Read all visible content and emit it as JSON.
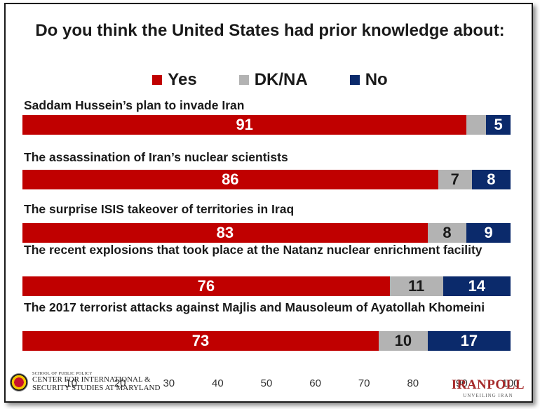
{
  "chart_data": {
    "type": "bar",
    "orientation": "horizontal",
    "stacked": true,
    "title": "Do you think the United States had prior knowledge about:",
    "categories": [
      "Saddam Hussein’s plan to invade Iran",
      "The assassination of Iran’s nuclear scientists",
      "The surprise ISIS takeover of territories in Iraq",
      "The recent explosions that took place at the Natanz nuclear enrichment facility",
      "The 2017 terrorist attacks against Majlis and Mausoleum of Ayatollah Khomeini"
    ],
    "series": [
      {
        "name": "Yes",
        "color": "#c00000",
        "values": [
          91,
          86,
          83,
          76,
          73
        ]
      },
      {
        "name": "DK/NA",
        "color": "#b3b3b3",
        "values": [
          4,
          7,
          8,
          11,
          10
        ]
      },
      {
        "name": "No",
        "color": "#0b2a6b",
        "values": [
          5,
          8,
          9,
          14,
          17
        ]
      }
    ],
    "data_labels": [
      [
        "91",
        "",
        "5"
      ],
      [
        "86",
        "7",
        "8"
      ],
      [
        "83",
        "8",
        "9"
      ],
      [
        "76",
        "11",
        "14"
      ],
      [
        "73",
        "10",
        "17"
      ]
    ],
    "xlim": [
      0,
      100
    ],
    "xticks": [
      "10",
      "20",
      "30",
      "40",
      "50",
      "60",
      "70",
      "80",
      "90",
      "100"
    ],
    "legend_position": "top-center",
    "grid": false
  },
  "logos": {
    "left_small": "SCHOOL OF PUBLIC POLICY",
    "left_line1": "CENTER FOR INTERNATIONAL &",
    "left_line2": "SECURITY STUDIES AT MARYLAND",
    "right_name": "IRANPOLL",
    "right_tag": "UNVEILING IRAN"
  }
}
